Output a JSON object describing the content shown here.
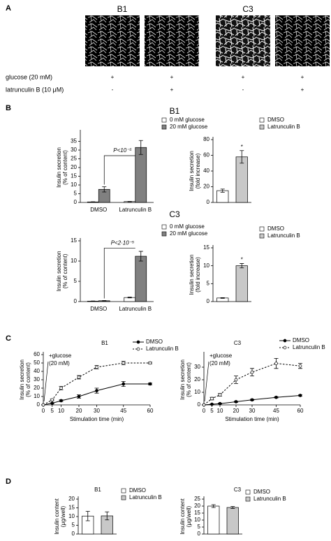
{
  "panel_labels": [
    "A",
    "B",
    "C",
    "D"
  ],
  "panel_a": {
    "columns": [
      "B1",
      "C3"
    ],
    "rows": [
      {
        "label": "glucose (20 mM)",
        "marks": [
          "+",
          "+",
          "+",
          "+"
        ]
      },
      {
        "label": "latrunculin B (10 μM)",
        "marks": [
          "-",
          "+",
          "-",
          "+"
        ]
      }
    ]
  },
  "panel_b_titles": [
    "B1",
    "C3"
  ],
  "chart_data": [
    {
      "type": "bar",
      "ylabel": [
        "Insulin secretion",
        "(% of content)"
      ],
      "categories": [
        "DMSO",
        "Latrunculin B"
      ],
      "series": [
        {
          "name": "0 mM glucose",
          "color": "#ffffff",
          "values": [
            0.3,
            0.5
          ],
          "errors": [
            0.1,
            0.1
          ]
        },
        {
          "name": "20 mM glucose",
          "color": "#808080",
          "values": [
            7.5,
            31.5
          ],
          "errors": [
            1.5,
            4
          ]
        }
      ],
      "ylim": [
        0,
        40
      ],
      "yticks": [
        0,
        5,
        10,
        15,
        20,
        25,
        30,
        35
      ],
      "annotation": "P<10⁻⁵"
    },
    {
      "type": "bar",
      "ylabel": [
        "Insulin secretion",
        "(fold increase)"
      ],
      "series": [
        {
          "name": "DMSO",
          "color": "#ffffff",
          "values": [
            15
          ],
          "errors": [
            2
          ]
        },
        {
          "name": "Latrunculin B",
          "color": "#c8c8c8",
          "values": [
            58
          ],
          "errors": [
            8
          ]
        }
      ],
      "ylim": [
        0,
        80
      ],
      "yticks": [
        0,
        20,
        40,
        60,
        80
      ],
      "annotation": "*"
    },
    {
      "type": "bar",
      "ylabel": [
        "Insulin secretion",
        "(% of content)"
      ],
      "categories": [
        "DMSO",
        "Latrunculin B"
      ],
      "series": [
        {
          "name": "0 mM glucose",
          "color": "#ffffff",
          "values": [
            0.1,
            1.0
          ],
          "errors": [
            0.05,
            0.1
          ]
        },
        {
          "name": "20 mM glucose",
          "color": "#808080",
          "values": [
            0.2,
            11.2
          ],
          "errors": [
            0.05,
            1.2
          ]
        }
      ],
      "ylim": [
        0,
        15
      ],
      "yticks": [
        0,
        5,
        10,
        15
      ],
      "annotation": "P<2·10⁻⁵"
    },
    {
      "type": "bar",
      "ylabel": [
        "Insulin secretion",
        "(fold increase)"
      ],
      "series": [
        {
          "name": "DMSO",
          "color": "#ffffff",
          "values": [
            1
          ],
          "errors": [
            0.1
          ]
        },
        {
          "name": "Latrunculin B",
          "color": "#c8c8c8",
          "values": [
            10
          ],
          "errors": [
            0.6
          ]
        }
      ],
      "ylim": [
        0,
        15
      ],
      "yticks": [
        0,
        5,
        10,
        15
      ],
      "annotation": "*"
    },
    {
      "type": "line",
      "title": "B1",
      "ylabel": [
        "Insulin secretion",
        "(% of content)"
      ],
      "xlabel": "Stimulation time (min)",
      "x": [
        0,
        5,
        10,
        20,
        30,
        45,
        60
      ],
      "xlim": [
        0,
        60
      ],
      "xticks": [
        0,
        5,
        10,
        20,
        30,
        45,
        60
      ],
      "ylim": [
        0,
        60
      ],
      "yticks": [
        0,
        10,
        20,
        30,
        40,
        50,
        60
      ],
      "series": [
        {
          "name": "DMSO",
          "color": "#000000",
          "fill": "#000000",
          "dashed": false,
          "values": [
            0,
            2,
            5,
            10,
            17,
            25,
            25
          ],
          "errors": [
            0,
            0.5,
            1,
            2,
            3,
            3,
            1
          ]
        },
        {
          "name": "Latrunculin B",
          "color": "#000000",
          "fill": "#ffffff",
          "dashed": true,
          "values": [
            0,
            6,
            20,
            33,
            45,
            50,
            50
          ],
          "errors": [
            0,
            1,
            2,
            2,
            2,
            2,
            1
          ]
        }
      ],
      "annotation": [
        "+glucose",
        "(20 mM)"
      ]
    },
    {
      "type": "line",
      "title": "C3",
      "ylabel": [
        "Insulin secretion",
        "(% of content)"
      ],
      "xlabel": "Stimulation time (min)",
      "x": [
        0,
        5,
        10,
        20,
        30,
        45,
        60
      ],
      "xlim": [
        0,
        60
      ],
      "xticks": [
        0,
        5,
        10,
        20,
        30,
        45,
        60
      ],
      "ylim": [
        0,
        40
      ],
      "yticks": [
        0,
        10,
        20,
        30
      ],
      "series": [
        {
          "name": "DMSO",
          "color": "#000000",
          "fill": "#000000",
          "dashed": false,
          "values": [
            0,
            0.5,
            1,
            2.5,
            4,
            6,
            7.5
          ],
          "errors": [
            0,
            0.3,
            0.3,
            0.5,
            0.5,
            0.5,
            0.5
          ]
        },
        {
          "name": "Latrunculin B",
          "color": "#000000",
          "fill": "#ffffff",
          "dashed": true,
          "values": [
            0,
            5,
            8,
            20,
            26,
            33,
            31
          ],
          "errors": [
            0,
            1,
            1,
            3,
            3,
            4,
            2
          ]
        }
      ],
      "annotation": [
        "+glucose",
        "(20 mM)"
      ]
    },
    {
      "type": "bar",
      "title": "B1",
      "ylabel": [
        "Insulin content",
        "(μg/well)"
      ],
      "series": [
        {
          "name": "DMSO",
          "color": "#ffffff",
          "values": [
            10.3
          ],
          "errors": [
            2.7
          ]
        },
        {
          "name": "Latrunculin B",
          "color": "#c8c8c8",
          "values": [
            10.4
          ],
          "errors": [
            2.3
          ]
        }
      ],
      "ylim": [
        0,
        20
      ],
      "yticks": [
        0,
        5,
        10,
        15,
        20
      ]
    },
    {
      "type": "bar",
      "title": "C3",
      "ylabel": [
        "Insulin content",
        "(μg/well)"
      ],
      "series": [
        {
          "name": "DMSO",
          "color": "#ffffff",
          "values": [
            20
          ],
          "errors": [
            1
          ]
        },
        {
          "name": "Latrunculin B",
          "color": "#c8c8c8",
          "values": [
            19
          ],
          "errors": [
            0.7
          ]
        }
      ],
      "ylim": [
        0,
        25
      ],
      "yticks": [
        0,
        5,
        10,
        15,
        20,
        25
      ]
    }
  ]
}
